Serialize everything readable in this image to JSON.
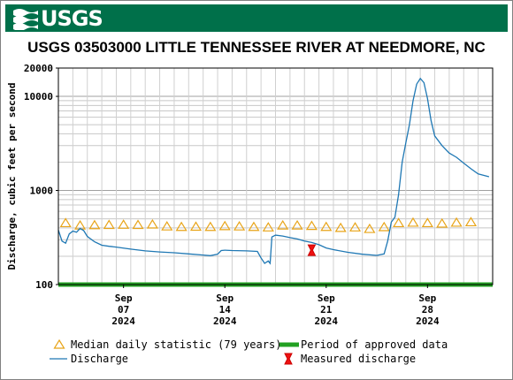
{
  "header": {
    "logo_text": "USGS"
  },
  "chart_data": {
    "type": "line",
    "title": "USGS 03503000 LITTLE TENNESSEE RIVER AT NEEDMORE, NC",
    "ylabel": "Discharge, cubic feet per second",
    "xlabel": "",
    "y_scale": "log",
    "ylim": [
      100,
      20000
    ],
    "y_ticks": [
      {
        "value": 100,
        "label": "100"
      },
      {
        "value": 1000,
        "label": "1000"
      },
      {
        "value": 10000,
        "label": "10000"
      },
      {
        "value": 20000,
        "label": "20000"
      }
    ],
    "xlim": [
      "2024-09-03",
      "2024-10-03"
    ],
    "x_ticks": [
      {
        "date": "2024-09-07",
        "label": [
          "Sep",
          "07",
          "2024"
        ]
      },
      {
        "date": "2024-09-14",
        "label": [
          "Sep",
          "14",
          "2024"
        ]
      },
      {
        "date": "2024-09-21",
        "label": [
          "Sep",
          "21",
          "2024"
        ]
      },
      {
        "date": "2024-09-28",
        "label": [
          "Sep",
          "28",
          "2024"
        ]
      }
    ],
    "grid": true,
    "legend_position": "bottom",
    "series": [
      {
        "name": "Discharge",
        "color": "#1f78b4",
        "points": [
          [
            "2024-09-03 00:00",
            380
          ],
          [
            "2024-09-03 06:00",
            290
          ],
          [
            "2024-09-03 12:00",
            275
          ],
          [
            "2024-09-03 18:00",
            345
          ],
          [
            "2024-09-04 00:00",
            370
          ],
          [
            "2024-09-04 06:00",
            360
          ],
          [
            "2024-09-04 12:00",
            395
          ],
          [
            "2024-09-04 18:00",
            375
          ],
          [
            "2024-09-05 00:00",
            325
          ],
          [
            "2024-09-05 12:00",
            285
          ],
          [
            "2024-09-06 00:00",
            262
          ],
          [
            "2024-09-06 12:00",
            255
          ],
          [
            "2024-09-07 00:00",
            250
          ],
          [
            "2024-09-08 00:00",
            238
          ],
          [
            "2024-09-09 00:00",
            228
          ],
          [
            "2024-09-10 00:00",
            222
          ],
          [
            "2024-09-11 00:00",
            218
          ],
          [
            "2024-09-12 00:00",
            212
          ],
          [
            "2024-09-13 00:00",
            206
          ],
          [
            "2024-09-13 12:00",
            203
          ],
          [
            "2024-09-14 00:00",
            210
          ],
          [
            "2024-09-14 06:00",
            230
          ],
          [
            "2024-09-14 12:00",
            232
          ],
          [
            "2024-09-15 00:00",
            230
          ],
          [
            "2024-09-16 00:00",
            228
          ],
          [
            "2024-09-16 18:00",
            225
          ],
          [
            "2024-09-17 00:00",
            192
          ],
          [
            "2024-09-17 06:00",
            168
          ],
          [
            "2024-09-17 12:00",
            178
          ],
          [
            "2024-09-17 15:00",
            168
          ],
          [
            "2024-09-17 18:00",
            320
          ],
          [
            "2024-09-18 00:00",
            335
          ],
          [
            "2024-09-18 12:00",
            328
          ],
          [
            "2024-09-19 00:00",
            315
          ],
          [
            "2024-09-19 12:00",
            305
          ],
          [
            "2024-09-20 00:00",
            290
          ],
          [
            "2024-09-20 12:00",
            280
          ],
          [
            "2024-09-21 00:00",
            265
          ],
          [
            "2024-09-21 12:00",
            245
          ],
          [
            "2024-09-22 00:00",
            235
          ],
          [
            "2024-09-23 00:00",
            220
          ],
          [
            "2024-09-24 00:00",
            210
          ],
          [
            "2024-09-25 00:00",
            204
          ],
          [
            "2024-09-25 12:00",
            212
          ],
          [
            "2024-09-25 18:00",
            290
          ],
          [
            "2024-09-26 00:00",
            460
          ],
          [
            "2024-09-26 06:00",
            520
          ],
          [
            "2024-09-26 12:00",
            900
          ],
          [
            "2024-09-26 18:00",
            2000
          ],
          [
            "2024-09-27 00:00",
            3200
          ],
          [
            "2024-09-27 06:00",
            5000
          ],
          [
            "2024-09-27 12:00",
            9000
          ],
          [
            "2024-09-27 18:00",
            13500
          ],
          [
            "2024-09-28 00:00",
            15500
          ],
          [
            "2024-09-28 06:00",
            14000
          ],
          [
            "2024-09-28 12:00",
            9500
          ],
          [
            "2024-09-28 18:00",
            5500
          ],
          [
            "2024-09-29 00:00",
            3800
          ],
          [
            "2024-09-29 12:00",
            3000
          ],
          [
            "2024-09-30 00:00",
            2500
          ],
          [
            "2024-09-30 12:00",
            2250
          ],
          [
            "2024-10-01 00:00",
            1950
          ],
          [
            "2024-10-01 12:00",
            1700
          ],
          [
            "2024-10-02 00:00",
            1500
          ],
          [
            "2024-10-02 18:00",
            1400
          ]
        ]
      },
      {
        "name": "Median daily statistic (79 years)",
        "color": "#e8a418",
        "marker": "triangle",
        "points": [
          [
            "2024-09-03",
            450
          ],
          [
            "2024-09-04",
            425
          ],
          [
            "2024-09-05",
            428
          ],
          [
            "2024-09-06",
            430
          ],
          [
            "2024-09-07",
            432
          ],
          [
            "2024-09-08",
            430
          ],
          [
            "2024-09-09",
            435
          ],
          [
            "2024-09-10",
            415
          ],
          [
            "2024-09-11",
            410
          ],
          [
            "2024-09-12",
            412
          ],
          [
            "2024-09-13",
            410
          ],
          [
            "2024-09-14",
            418
          ],
          [
            "2024-09-15",
            415
          ],
          [
            "2024-09-16",
            410
          ],
          [
            "2024-09-17",
            405
          ],
          [
            "2024-09-18",
            425
          ],
          [
            "2024-09-19",
            425
          ],
          [
            "2024-09-20",
            420
          ],
          [
            "2024-09-21",
            410
          ],
          [
            "2024-09-22",
            400
          ],
          [
            "2024-09-23",
            405
          ],
          [
            "2024-09-24",
            390
          ],
          [
            "2024-09-25",
            408
          ],
          [
            "2024-09-26",
            450
          ],
          [
            "2024-09-27",
            455
          ],
          [
            "2024-09-28",
            450
          ],
          [
            "2024-09-29",
            445
          ],
          [
            "2024-09-30",
            455
          ],
          [
            "2024-10-01",
            460
          ]
        ]
      },
      {
        "name": "Period of approved data",
        "color": "#22a022",
        "range": [
          "2024-09-03",
          "2024-10-03"
        ],
        "value": 100
      },
      {
        "name": "Measured discharge",
        "color": "#ee1111",
        "marker": "hourglass",
        "points": [
          [
            "2024-09-20 12:00",
            232
          ]
        ]
      }
    ]
  },
  "legend": [
    {
      "key": "median",
      "label": "Median daily statistic (79 years)",
      "symbol": "triangle-icon"
    },
    {
      "key": "approved",
      "label": "Period of approved data",
      "symbol": "green-bar-icon"
    },
    {
      "key": "discharge",
      "label": "Discharge",
      "symbol": "line-icon"
    },
    {
      "key": "measured",
      "label": "Measured discharge",
      "symbol": "hourglass-icon"
    }
  ]
}
